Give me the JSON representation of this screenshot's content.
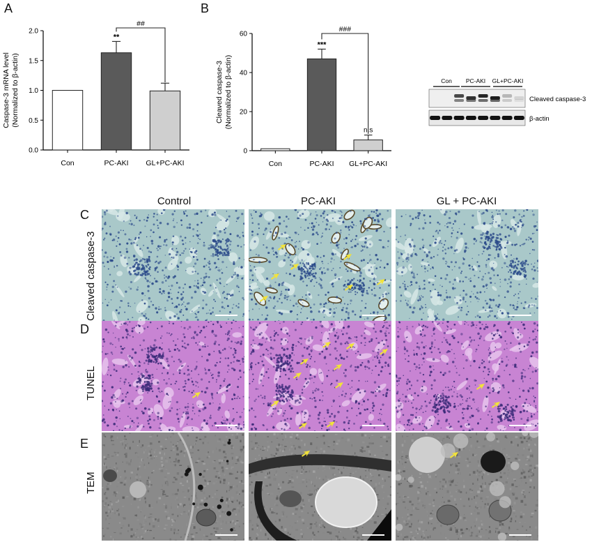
{
  "panels": {
    "A": "A",
    "B": "B",
    "C": "C",
    "D": "D",
    "E": "E"
  },
  "chart_data": [
    {
      "type": "bar",
      "ylabel_line1": "Caspase-3 mRNA level",
      "ylabel_line2": "(Normalized to β-actin)",
      "categories": [
        "Con",
        "PC-AKI",
        "GL+PC-AKI"
      ],
      "values": [
        1.0,
        1.63,
        0.99
      ],
      "errors": [
        0.0,
        0.19,
        0.13
      ],
      "ylim": [
        0,
        2.0
      ],
      "yticks": [
        "0.0",
        "0.5",
        "1.0",
        "1.5",
        "2.0"
      ],
      "ytick_values": [
        0,
        0.5,
        1.0,
        1.5,
        2.0
      ],
      "bar_colors": [
        "#ffffff",
        "#5a5a5a",
        "#cfcfcf"
      ],
      "annotations": {
        "bar_stars": "**",
        "bracket": "##"
      }
    },
    {
      "type": "bar",
      "ylabel_line1": "Cleaved caspase-3",
      "ylabel_line2": "(Normalized to β-actin)",
      "categories": [
        "Con",
        "PC-AKI",
        "GL+PC-AKI"
      ],
      "values": [
        1.0,
        47.0,
        5.5
      ],
      "errors": [
        0.0,
        5.0,
        2.5
      ],
      "ylim": [
        0,
        60
      ],
      "yticks": [
        "0",
        "20",
        "40",
        "60"
      ],
      "ytick_values": [
        0,
        20,
        40,
        60
      ],
      "bar_colors": [
        "#ffffff",
        "#5a5a5a",
        "#cfcfcf"
      ],
      "annotations": {
        "bar_stars": "***",
        "bar3_label": "n.s",
        "bracket": "###"
      }
    }
  ],
  "blot": {
    "groups": [
      "Con",
      "PC-AKI",
      "GL+PC-AKI"
    ],
    "bands": [
      "Cleaved caspase-3",
      "β-actin"
    ],
    "band_intensity_caspase": [
      0.0,
      0.0,
      0.75,
      0.85,
      0.9,
      0.95,
      0.25,
      0.12
    ],
    "band_intensity_actin": [
      1,
      1,
      1,
      1,
      1,
      1,
      1,
      1
    ]
  },
  "images": {
    "columns": [
      "Control",
      "PC-AKI",
      "GL + PC-AKI"
    ],
    "rows": [
      "Cleaved caspase-3",
      "TUNEL",
      "TEM"
    ]
  },
  "colors": {
    "ihc_bg": "#a9c8c9",
    "ihc_nuclei": "#2b4a8a",
    "tunel_bg": "#c884d3",
    "tunel_nuclei": "#3a2a78",
    "tem_bg": "#8a8a8a",
    "arrow": "#f2e33a"
  }
}
